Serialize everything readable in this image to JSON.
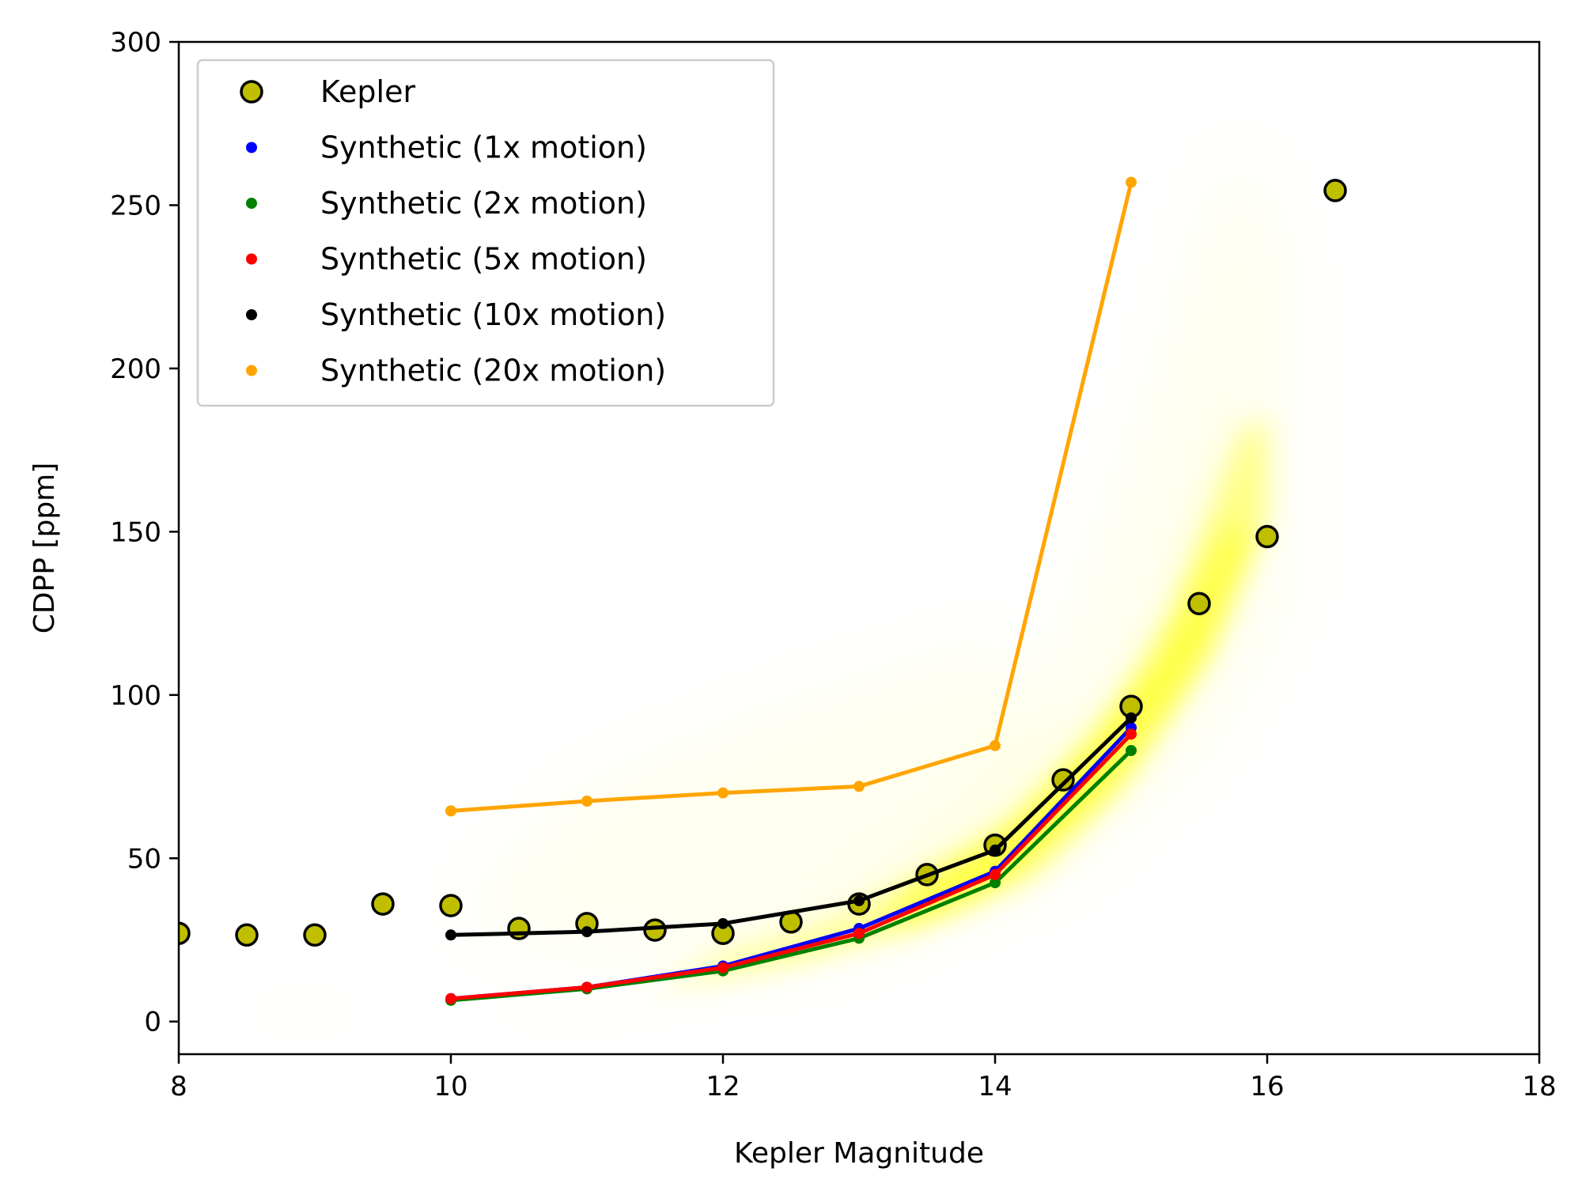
{
  "chart_data": {
    "type": "scatter",
    "xlabel": "Kepler Magnitude",
    "ylabel": "CDPP [ppm]",
    "xlim": [
      8,
      18
    ],
    "ylim": [
      -10,
      300
    ],
    "xticks": [
      "8",
      "10",
      "12",
      "14",
      "16",
      "18"
    ],
    "yticks": [
      "0",
      "50",
      "100",
      "150",
      "200",
      "250",
      "300"
    ],
    "xtick_values": [
      8,
      10,
      12,
      14,
      16,
      18
    ],
    "ytick_values": [
      0,
      50,
      100,
      150,
      200,
      250,
      300
    ],
    "grid": false,
    "legend_position": "top-left",
    "background_cloud": {
      "color": "#ffff00",
      "description_hidden": true
    },
    "series": [
      {
        "name": "Kepler",
        "marker": "open-circle",
        "color": "#bfbf00",
        "edge_color": "#000000",
        "line": false,
        "x": [
          8,
          8.5,
          9,
          9.5,
          10,
          10.5,
          11,
          11.5,
          12,
          12.5,
          13,
          13.5,
          14,
          14.5,
          15,
          15.5,
          16,
          16.5
        ],
        "y": [
          27,
          26.5,
          26.5,
          36,
          35.5,
          28.5,
          30,
          28,
          27,
          30.5,
          36,
          45,
          54,
          74,
          96.5,
          128,
          148.5,
          254.5
        ]
      },
      {
        "name": "Synthetic (1x motion)",
        "marker": "dot",
        "color": "#0000ff",
        "line": true,
        "x": [
          10,
          11,
          12,
          13,
          14,
          15
        ],
        "y": [
          7,
          10.5,
          17,
          28.5,
          46,
          90
        ]
      },
      {
        "name": "Synthetic (2x motion)",
        "marker": "dot",
        "color": "#008000",
        "line": true,
        "x": [
          10,
          11,
          12,
          13,
          14,
          15
        ],
        "y": [
          6.5,
          10,
          15.5,
          25.5,
          42.5,
          83
        ]
      },
      {
        "name": "Synthetic (5x motion)",
        "marker": "dot",
        "color": "#ff0000",
        "line": true,
        "x": [
          10,
          11,
          12,
          13,
          14,
          15
        ],
        "y": [
          7,
          10.5,
          16.5,
          27,
          45,
          88
        ]
      },
      {
        "name": "Synthetic (10x motion)",
        "marker": "dot",
        "color": "#000000",
        "line": true,
        "x": [
          10,
          11,
          12,
          13,
          14,
          15
        ],
        "y": [
          26.5,
          27.5,
          30,
          37,
          52.5,
          93
        ]
      },
      {
        "name": "Synthetic (20x motion)",
        "marker": "dot",
        "color": "#ffa500",
        "line": true,
        "x": [
          10,
          11,
          12,
          13,
          14,
          15
        ],
        "y": [
          64.5,
          67.5,
          70,
          72,
          84.5,
          257
        ]
      }
    ]
  }
}
